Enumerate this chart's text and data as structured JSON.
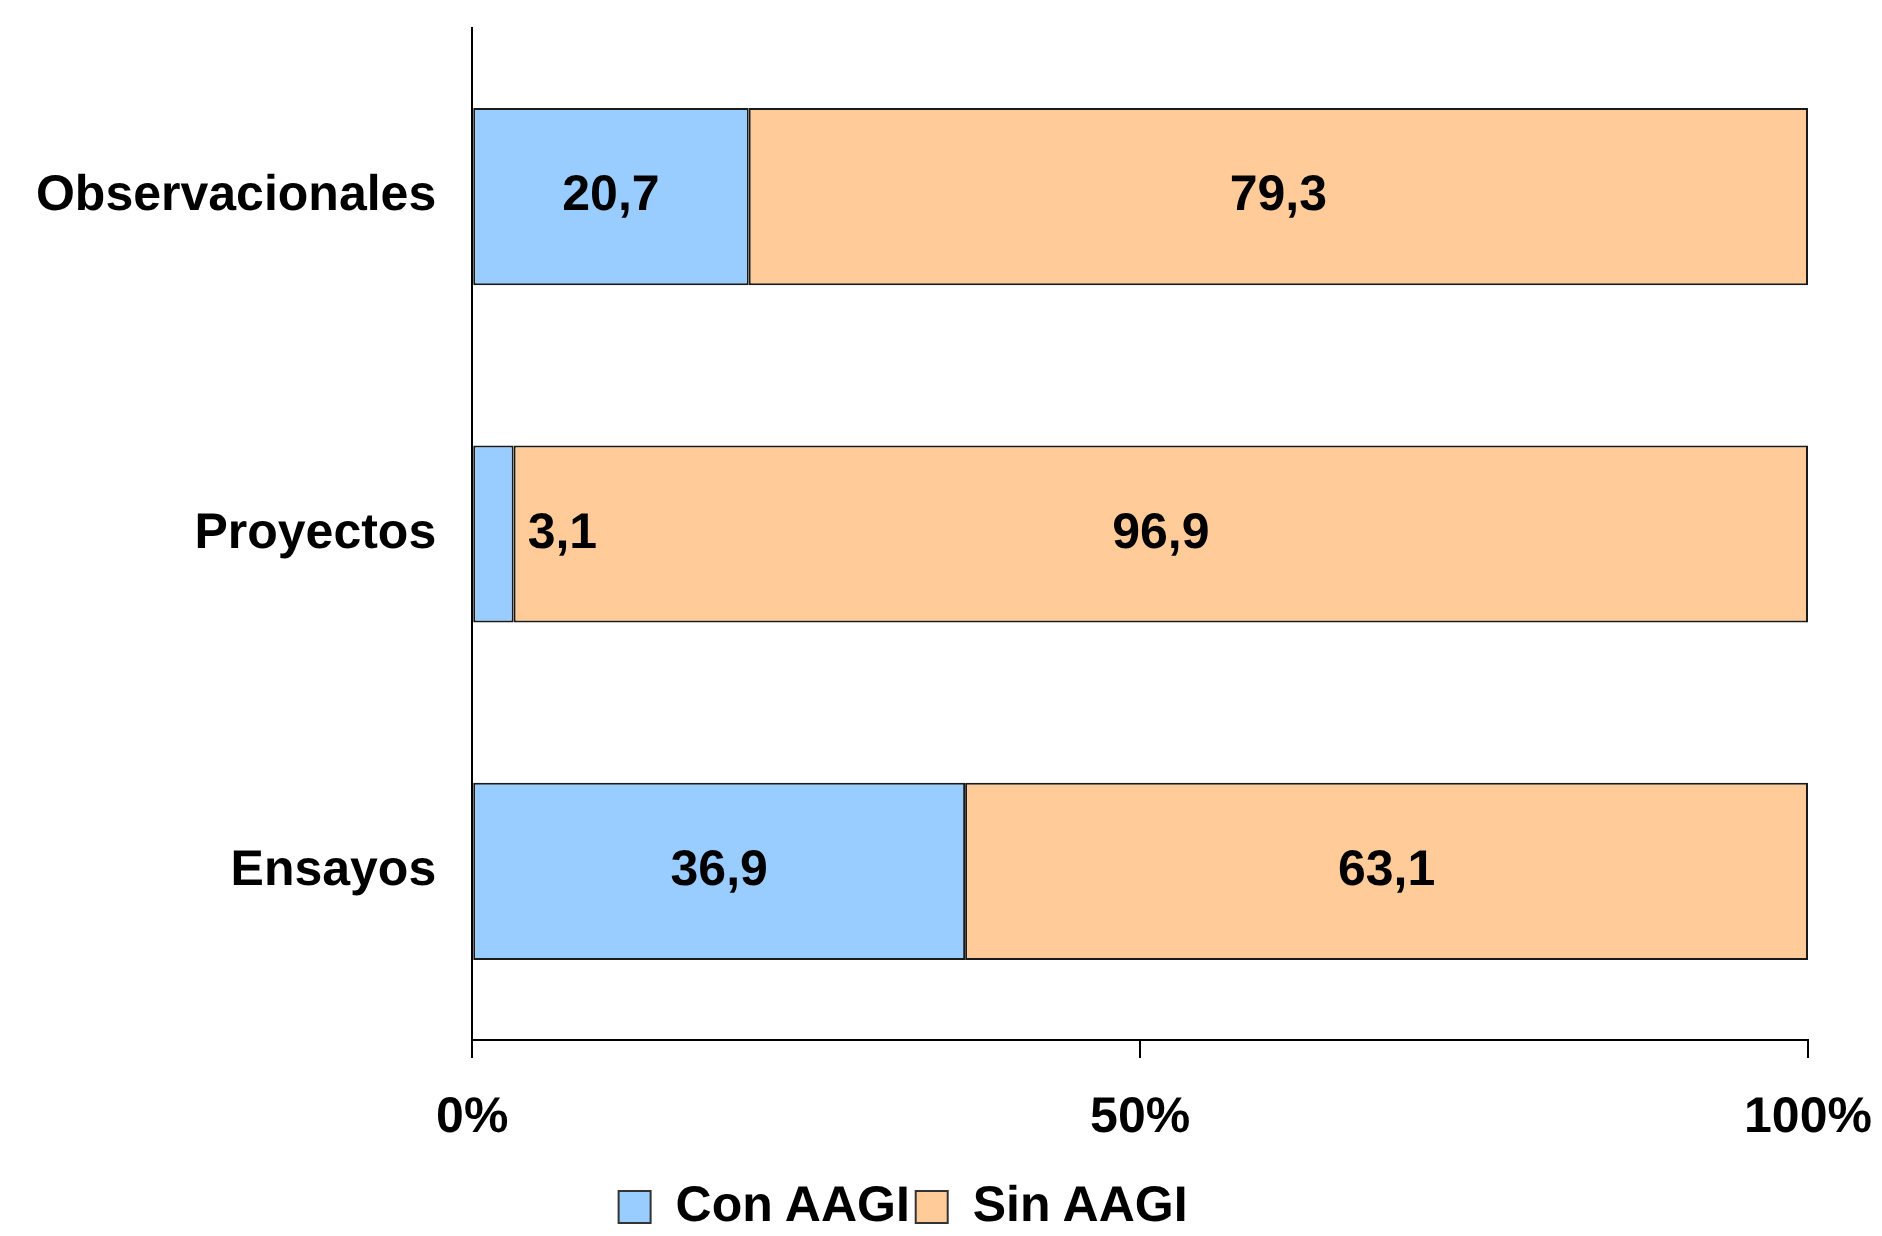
{
  "chart_data": {
    "type": "bar",
    "orientation": "horizontal",
    "stacked": true,
    "categories": [
      "Observacionales",
      "Proyectos",
      "Ensayos"
    ],
    "series": [
      {
        "name": "Con AAGI",
        "color": "#99ccff",
        "values": [
          20.7,
          3.1,
          36.9
        ],
        "value_labels": [
          "20,7",
          "3,1",
          "36,9"
        ]
      },
      {
        "name": "Sin AAGI",
        "color": "#ffcc99",
        "values": [
          79.3,
          96.9,
          63.1
        ],
        "value_labels": [
          "79,3",
          "96,9",
          "63,1"
        ]
      }
    ],
    "xlim": [
      0,
      100
    ],
    "xticks": [
      {
        "value": 0,
        "label": "0%"
      },
      {
        "value": 50,
        "label": "50%"
      },
      {
        "value": 100,
        "label": "100%"
      }
    ],
    "legend": "bottom"
  }
}
